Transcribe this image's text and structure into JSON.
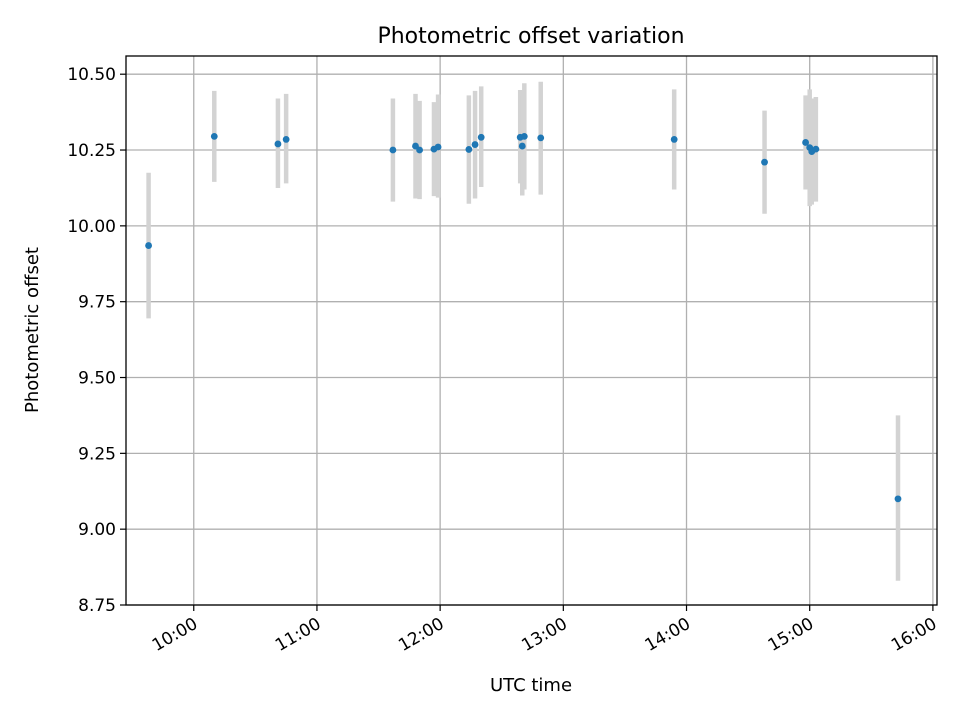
{
  "chart_data": {
    "type": "scatter",
    "title": "Photometric offset variation",
    "xlabel": "UTC time",
    "ylabel": "Photometric offset",
    "xlim": [
      "09:27",
      "16:02"
    ],
    "ylim": [
      8.75,
      10.56
    ],
    "x_ticks": [
      "10:00",
      "11:00",
      "12:00",
      "13:00",
      "14:00",
      "15:00",
      "16:00"
    ],
    "y_ticks": [
      "8.75",
      "9.00",
      "9.25",
      "9.50",
      "9.75",
      "10.00",
      "10.25",
      "10.50"
    ],
    "grid": true,
    "marker_color": "#1f77b4",
    "errorbar_color": "#d3d3d3",
    "points": [
      {
        "x": "09:38",
        "y": 9.935,
        "err_low": 9.695,
        "err_high": 10.175
      },
      {
        "x": "10:10",
        "y": 10.295,
        "err_low": 10.145,
        "err_high": 10.445
      },
      {
        "x": "10:41",
        "y": 10.27,
        "err_low": 10.125,
        "err_high": 10.42
      },
      {
        "x": "10:45",
        "y": 10.285,
        "err_low": 10.14,
        "err_high": 10.435
      },
      {
        "x": "11:37",
        "y": 10.25,
        "err_low": 10.08,
        "err_high": 10.42
      },
      {
        "x": "11:48",
        "y": 10.263,
        "err_low": 10.09,
        "err_high": 10.435
      },
      {
        "x": "11:50",
        "y": 10.25,
        "err_low": 10.088,
        "err_high": 10.412
      },
      {
        "x": "11:57",
        "y": 10.253,
        "err_low": 10.098,
        "err_high": 10.408
      },
      {
        "x": "11:59",
        "y": 10.26,
        "err_low": 10.093,
        "err_high": 10.433
      },
      {
        "x": "12:14",
        "y": 10.252,
        "err_low": 10.073,
        "err_high": 10.43
      },
      {
        "x": "12:17",
        "y": 10.268,
        "err_low": 10.09,
        "err_high": 10.445
      },
      {
        "x": "12:20",
        "y": 10.292,
        "err_low": 10.128,
        "err_high": 10.46
      },
      {
        "x": "12:39",
        "y": 10.292,
        "err_low": 10.14,
        "err_high": 10.448
      },
      {
        "x": "12:40",
        "y": 10.263,
        "err_low": 10.1,
        "err_high": 10.43
      },
      {
        "x": "12:41",
        "y": 10.295,
        "err_low": 10.12,
        "err_high": 10.47
      },
      {
        "x": "12:49",
        "y": 10.29,
        "err_low": 10.103,
        "err_high": 10.475
      },
      {
        "x": "13:54",
        "y": 10.285,
        "err_low": 10.12,
        "err_high": 10.45
      },
      {
        "x": "14:38",
        "y": 10.21,
        "err_low": 10.04,
        "err_high": 10.38
      },
      {
        "x": "14:58",
        "y": 10.275,
        "err_low": 10.12,
        "err_high": 10.43
      },
      {
        "x": "15:00",
        "y": 10.258,
        "err_low": 10.065,
        "err_high": 10.45
      },
      {
        "x": "15:01",
        "y": 10.245,
        "err_low": 10.07,
        "err_high": 10.42
      },
      {
        "x": "15:03",
        "y": 10.253,
        "err_low": 10.08,
        "err_high": 10.425
      },
      {
        "x": "15:43",
        "y": 9.1,
        "err_low": 8.83,
        "err_high": 9.375
      }
    ]
  }
}
